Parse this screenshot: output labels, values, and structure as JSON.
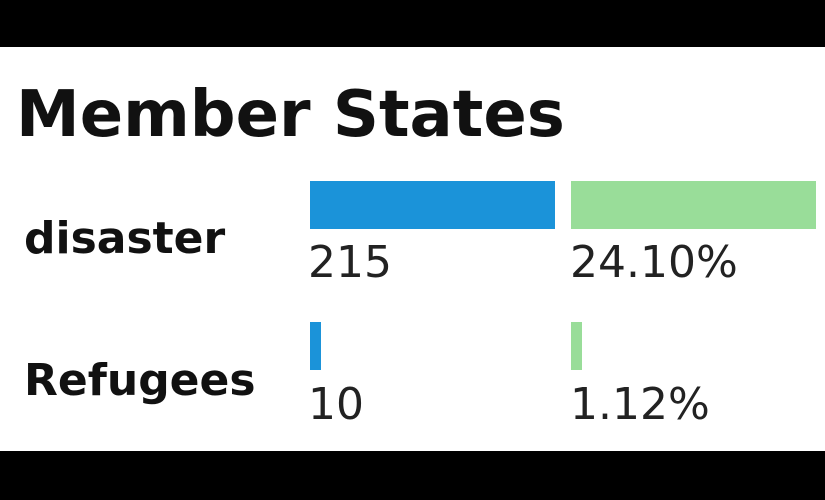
{
  "chart_data": {
    "type": "bar",
    "title": "Member States",
    "categories": [
      "disaster",
      "Refugees"
    ],
    "series": [
      {
        "color": "#1b93d9",
        "values": [
          215,
          10
        ]
      },
      {
        "color": "#99dd99",
        "values": [
          24.1,
          1.12
        ],
        "labels": [
          "24.10%",
          "1.12%"
        ]
      }
    ]
  }
}
